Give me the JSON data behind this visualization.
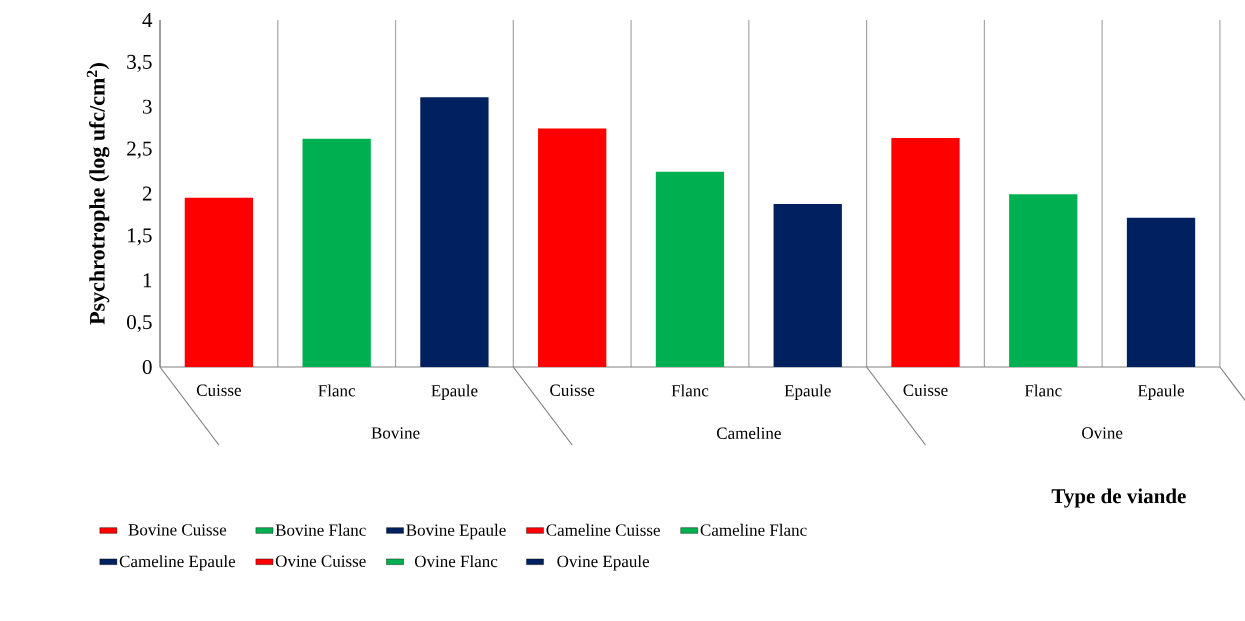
{
  "chart_data": {
    "type": "bar",
    "xlabel": "Type de viande",
    "ylabel": "Psychrotrophe (log ufc/cm$^{2}$)",
    "categories": [
      "Cuisse",
      "Flanc",
      "Epaule",
      "Cuisse",
      "Flanc",
      "Epaule",
      "Cuisse",
      "Flanc",
      "Epaule"
    ],
    "annotations": [
      "Bovine",
      "Cameline",
      "Ovine"
    ],
    "series": [
      {
        "name": "Bovine Cuisse",
        "color": "#ff0000",
        "values": [
          1.95,
          null,
          null,
          null,
          null,
          null,
          null,
          null,
          null
        ]
      },
      {
        "name": "Bovine Flanc",
        "color": "#00b050",
        "values": [
          null,
          2.63,
          null,
          null,
          null,
          null,
          null,
          null,
          null
        ]
      },
      {
        "name": "Bovine Epaule",
        "color": "#002060",
        "values": [
          null,
          null,
          3.11,
          null,
          null,
          null,
          null,
          null,
          null
        ]
      },
      {
        "name": "Cameline Cuisse",
        "color": "#ff0000",
        "values": [
          null,
          null,
          null,
          2.75,
          null,
          null,
          null,
          null,
          null
        ]
      },
      {
        "name": "Cameline Flanc",
        "color": "#00b050",
        "values": [
          null,
          null,
          null,
          null,
          2.25,
          null,
          null,
          null,
          null
        ]
      },
      {
        "name": "Cameline Epaule",
        "color": "#002060",
        "values": [
          null,
          null,
          null,
          null,
          null,
          1.88,
          null,
          null,
          null
        ]
      },
      {
        "name": "Ovine Cuisse",
        "color": "#ff0000",
        "values": [
          null,
          null,
          null,
          null,
          null,
          null,
          2.64,
          null,
          null
        ]
      },
      {
        "name": "Ovine Flanc",
        "color": "#00b050",
        "values": [
          null,
          null,
          null,
          null,
          null,
          null,
          null,
          1.99,
          null
        ]
      },
      {
        "name": "Ovine Epaule",
        "color": "#002060",
        "values": [
          null,
          null,
          null,
          null,
          null,
          null,
          null,
          null,
          1.72
        ]
      }
    ],
    "ylim": [
      0,
      4
    ],
    "yticks": [
      0,
      {
        "value": 0.5,
        "label": "0,5"
      },
      1,
      {
        "value": 1.5,
        "label": "1,5"
      },
      2,
      {
        "value": 2.5,
        "label": "2,5"
      },
      3,
      {
        "value": 3.5,
        "label": "3,5"
      },
      4
    ],
    "grid": "x",
    "legend": "bottom"
  }
}
